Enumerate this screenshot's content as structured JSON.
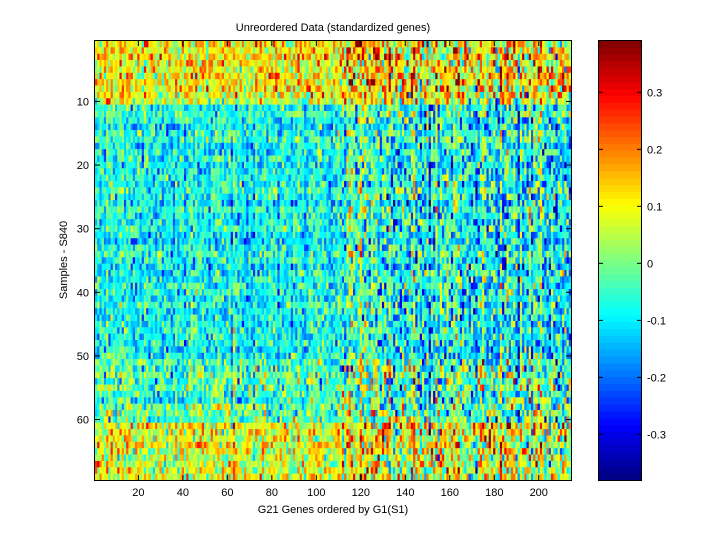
{
  "chart_data": {
    "type": "heatmap",
    "title": "Unreordered Data (standardized genes)",
    "xlabel": "G21 Genes ordered by G1(S1)",
    "ylabel": "Samples - S840",
    "n_cols": 214,
    "n_rows": 69,
    "xlim": [
      0.5,
      214.5
    ],
    "ylim": [
      0.5,
      69.5
    ],
    "x_ticks": [
      20,
      40,
      60,
      80,
      100,
      120,
      140,
      160,
      180,
      200
    ],
    "y_ticks": [
      10,
      20,
      30,
      40,
      50,
      60
    ],
    "colorbar": {
      "colormap": "jet",
      "clim": [
        -0.38,
        0.39
      ],
      "ticks": [
        -0.3,
        -0.2,
        -0.1,
        0,
        0.1,
        0.2,
        0.3
      ],
      "tick_labels": [
        "-0.3",
        "-0.2",
        "-0.1",
        "0",
        "0.1",
        "0.2",
        "0.3"
      ]
    },
    "row_profile": {
      "description_of_values": "approximate mean standardized value per row band",
      "bands": [
        {
          "rows": [
            1,
            10
          ],
          "mean": 0.1,
          "spread": 0.1
        },
        {
          "rows": [
            11,
            50
          ],
          "mean": -0.08,
          "spread": 0.08
        },
        {
          "rows": [
            51,
            60
          ],
          "mean": -0.03,
          "spread": 0.1
        },
        {
          "rows": [
            61,
            69
          ],
          "mean": 0.07,
          "spread": 0.1
        }
      ]
    },
    "grid": false
  }
}
